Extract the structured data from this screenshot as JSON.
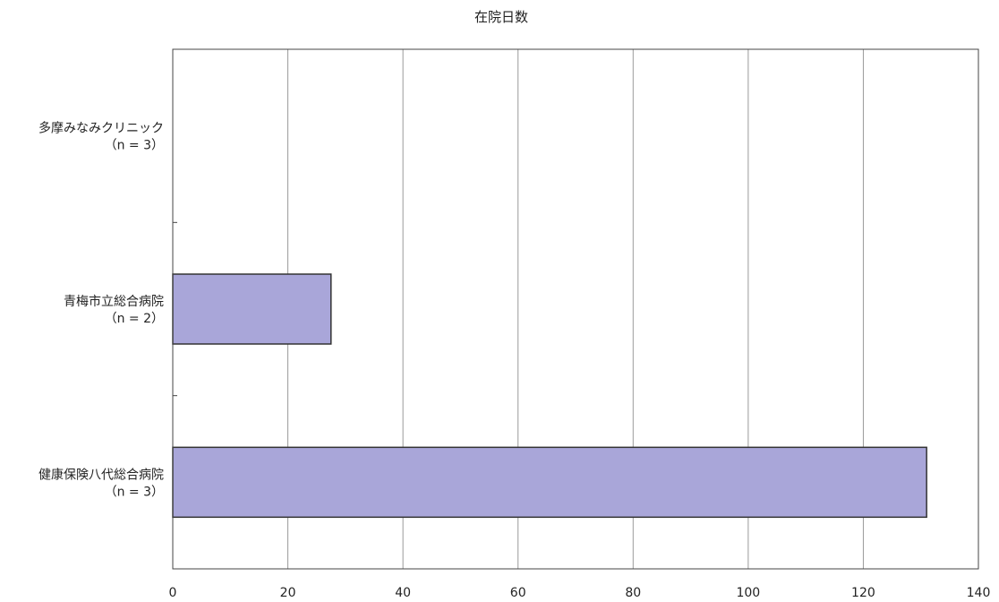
{
  "chart_data": {
    "type": "bar",
    "orientation": "horizontal",
    "title": "在院日数",
    "xlabel": "",
    "ylabel": "",
    "categories": [
      {
        "name": "多摩みなみクリニック",
        "n_label": "（n = 3）"
      },
      {
        "name": "青梅市立総合病院",
        "n_label": "（n = 2）"
      },
      {
        "name": "健康保険八代総合病院",
        "n_label": "（n = 3）"
      }
    ],
    "values": [
      0,
      27.5,
      131
    ],
    "xlim": [
      0,
      140
    ],
    "xticks": [
      0,
      20,
      40,
      60,
      80,
      100,
      120,
      140
    ],
    "grid": "vertical",
    "legend": "none",
    "bar_color": "#a9a6d9",
    "bar_edge_color": "#333333"
  }
}
